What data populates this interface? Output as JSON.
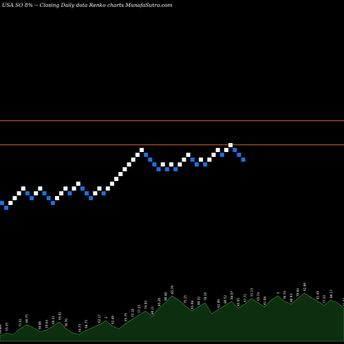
{
  "header": {
    "title": "USA SO 8% -- Closing Daily data Renko charts MunafaSutra.com"
  },
  "colors": {
    "background": "#000000",
    "up_brick": "#ffffff",
    "down_brick": "#1e6fe0",
    "reference_line": "#c8622a",
    "volume_fill": "#0d2f10",
    "volume_stroke": "#2f7a2f"
  },
  "chart_data": {
    "type": "renko",
    "y_axis_visible": false,
    "x_axis_visible": false,
    "grid": false,
    "reference_levels": [
      26.2,
      25.8
    ],
    "ylim": [
      21.0,
      27.0
    ],
    "bricks": [
      {
        "value": 25.75,
        "dir": "down"
      },
      {
        "value": 25.7,
        "dir": "down"
      },
      {
        "value": 25.75,
        "dir": "up"
      },
      {
        "value": 25.8,
        "dir": "up"
      },
      {
        "value": 25.85,
        "dir": "up"
      },
      {
        "value": 25.9,
        "dir": "up"
      },
      {
        "value": 25.85,
        "dir": "down"
      },
      {
        "value": 25.8,
        "dir": "down"
      },
      {
        "value": 25.85,
        "dir": "up"
      },
      {
        "value": 25.9,
        "dir": "up"
      },
      {
        "value": 25.85,
        "dir": "down"
      },
      {
        "value": 25.8,
        "dir": "down"
      },
      {
        "value": 25.75,
        "dir": "down"
      },
      {
        "value": 25.8,
        "dir": "up"
      },
      {
        "value": 25.85,
        "dir": "up"
      },
      {
        "value": 25.9,
        "dir": "up"
      },
      {
        "value": 25.85,
        "dir": "down"
      },
      {
        "value": 25.9,
        "dir": "up"
      },
      {
        "value": 25.95,
        "dir": "up"
      },
      {
        "value": 25.9,
        "dir": "down"
      },
      {
        "value": 25.85,
        "dir": "down"
      },
      {
        "value": 25.8,
        "dir": "down"
      },
      {
        "value": 25.85,
        "dir": "up"
      },
      {
        "value": 25.9,
        "dir": "up"
      },
      {
        "value": 25.85,
        "dir": "down"
      },
      {
        "value": 25.9,
        "dir": "up"
      },
      {
        "value": 25.95,
        "dir": "up"
      },
      {
        "value": 26.0,
        "dir": "up"
      },
      {
        "value": 26.05,
        "dir": "up"
      },
      {
        "value": 26.1,
        "dir": "up"
      },
      {
        "value": 26.15,
        "dir": "up"
      },
      {
        "value": 26.2,
        "dir": "up"
      },
      {
        "value": 26.25,
        "dir": "up"
      },
      {
        "value": 26.3,
        "dir": "up"
      },
      {
        "value": 26.25,
        "dir": "down"
      },
      {
        "value": 26.2,
        "dir": "down"
      },
      {
        "value": 26.15,
        "dir": "down"
      },
      {
        "value": 26.1,
        "dir": "down"
      },
      {
        "value": 26.15,
        "dir": "up"
      },
      {
        "value": 26.1,
        "dir": "down"
      },
      {
        "value": 26.15,
        "dir": "up"
      },
      {
        "value": 26.1,
        "dir": "down"
      },
      {
        "value": 26.15,
        "dir": "up"
      },
      {
        "value": 26.2,
        "dir": "up"
      },
      {
        "value": 26.25,
        "dir": "up"
      },
      {
        "value": 26.2,
        "dir": "down"
      },
      {
        "value": 26.15,
        "dir": "down"
      },
      {
        "value": 26.2,
        "dir": "up"
      },
      {
        "value": 26.15,
        "dir": "down"
      },
      {
        "value": 26.2,
        "dir": "up"
      },
      {
        "value": 26.25,
        "dir": "up"
      },
      {
        "value": 26.3,
        "dir": "up"
      },
      {
        "value": 26.25,
        "dir": "down"
      },
      {
        "value": 26.3,
        "dir": "up"
      },
      {
        "value": 26.35,
        "dir": "up"
      },
      {
        "value": 26.3,
        "dir": "down"
      },
      {
        "value": 26.25,
        "dir": "down"
      },
      {
        "value": 26.2,
        "dir": "down"
      }
    ],
    "volume": [
      {
        "value": 4,
        "label": "63.8M"
      },
      {
        "value": 6,
        "label": "55.35"
      },
      {
        "value": 5,
        "label": ""
      },
      {
        "value": 9,
        "label": "71.61"
      },
      {
        "value": 12,
        "label": "66.75"
      },
      {
        "value": 10,
        "label": ""
      },
      {
        "value": 7,
        "label": "50.88"
      },
      {
        "value": 8,
        "label": "59.64"
      },
      {
        "value": 11,
        "label": "60.51"
      },
      {
        "value": 14,
        "label": "65.01"
      },
      {
        "value": 9,
        "label": "70.70"
      },
      {
        "value": 6,
        "label": ""
      },
      {
        "value": 5,
        "label": "54.73"
      },
      {
        "value": 8,
        "label": "68.75"
      },
      {
        "value": 10,
        "label": ""
      },
      {
        "value": 12,
        "label": "62.17"
      },
      {
        "value": 15,
        "label": "3"
      },
      {
        "value": 11,
        "label": "62.49"
      },
      {
        "value": 9,
        "label": ""
      },
      {
        "value": 13,
        "label": "65.75"
      },
      {
        "value": 16,
        "label": "73.18"
      },
      {
        "value": 19,
        "label": "77.55"
      },
      {
        "value": 22,
        "label": "74.93"
      },
      {
        "value": 18,
        "label": "80.11"
      },
      {
        "value": 24,
        "label": "85.20"
      },
      {
        "value": 28,
        "label": "90.48"
      },
      {
        "value": 33,
        "label": "85.76"
      },
      {
        "value": 30,
        "label": ""
      },
      {
        "value": 26,
        "label": "75.15"
      },
      {
        "value": 22,
        "label": "91.68"
      },
      {
        "value": 25,
        "label": "80.32"
      },
      {
        "value": 28,
        "label": "78.16"
      },
      {
        "value": 20,
        "label": ""
      },
      {
        "value": 23,
        "label": "62.99"
      },
      {
        "value": 26,
        "label": "86.52"
      },
      {
        "value": 29,
        "label": "84.07"
      },
      {
        "value": 24,
        "label": "85.65"
      },
      {
        "value": 27,
        "label": "67.71"
      },
      {
        "value": 31,
        "label": "51.13"
      },
      {
        "value": 28,
        "label": "65.74"
      },
      {
        "value": 25,
        "label": "61.08"
      },
      {
        "value": 30,
        "label": ""
      },
      {
        "value": 33,
        "label": "5"
      },
      {
        "value": 29,
        "label": "76.75"
      },
      {
        "value": 27,
        "label": "80.93"
      },
      {
        "value": 31,
        "label": "79.04"
      },
      {
        "value": 35,
        "label": "62.86"
      },
      {
        "value": 32,
        "label": ""
      },
      {
        "value": 29,
        "label": "81.45"
      },
      {
        "value": 26,
        "label": "77.33"
      },
      {
        "value": 30,
        "label": "86.17"
      },
      {
        "value": 28,
        "label": ""
      },
      {
        "value": 24,
        "label": "81.57"
      }
    ]
  }
}
